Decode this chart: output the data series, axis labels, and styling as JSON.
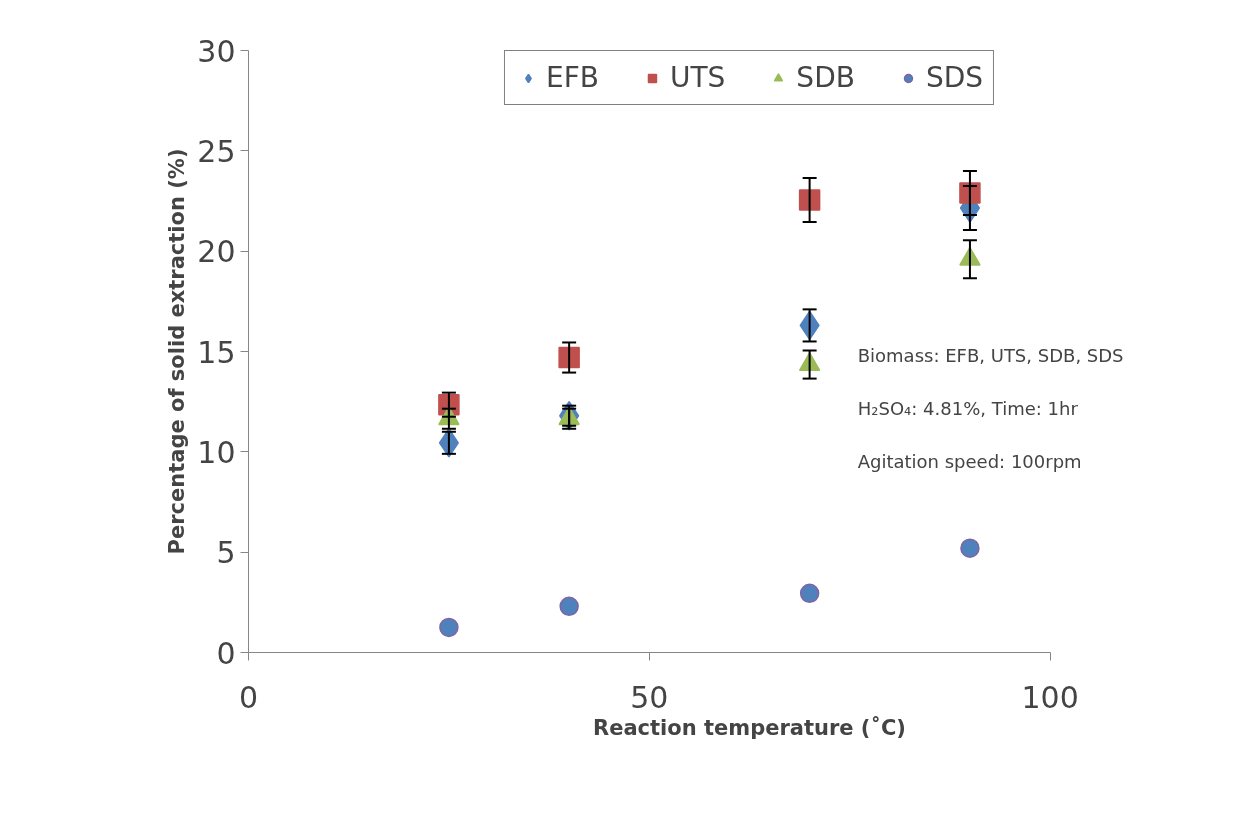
{
  "chart_data": {
    "type": "scatter",
    "xlabel": "Reaction temperature (˚C)",
    "ylabel": "Percentage of solid extraction (%)",
    "x": [
      25,
      40,
      70,
      90
    ],
    "series": [
      {
        "name": "EFB",
        "color": "#4f81bd",
        "marker": "diamond",
        "values": [
          10.45,
          11.8,
          16.3,
          22.15
        ],
        "errors": [
          0.55,
          0.5,
          0.8,
          1.1
        ]
      },
      {
        "name": "UTS",
        "color": "#c0504d",
        "marker": "square",
        "values": [
          12.35,
          14.7,
          22.55,
          22.9
        ],
        "errors": [
          0.6,
          0.75,
          1.1,
          1.1
        ]
      },
      {
        "name": "SDB",
        "color": "#9bbb59",
        "marker": "triangle",
        "values": [
          11.65,
          11.65,
          14.35,
          19.6
        ],
        "errors": [
          0.5,
          0.5,
          0.7,
          0.95
        ]
      },
      {
        "name": "SDS",
        "color": "#4f81bd",
        "marker": "circle",
        "values": [
          1.25,
          2.3,
          2.95,
          5.2
        ]
      }
    ],
    "xlim": [
      0,
      100
    ],
    "xticks": [
      0,
      50,
      100
    ],
    "ylim": [
      0,
      30
    ],
    "yticks": [
      0,
      5,
      10,
      15,
      20,
      25,
      30
    ],
    "grid": false,
    "legend": "top",
    "annotations": [
      "Biomass: EFB, UTS, SDB, SDS",
      "H₂SO₄: 4.81%, Time: 1hr",
      "Agitation speed: 100rpm"
    ]
  }
}
